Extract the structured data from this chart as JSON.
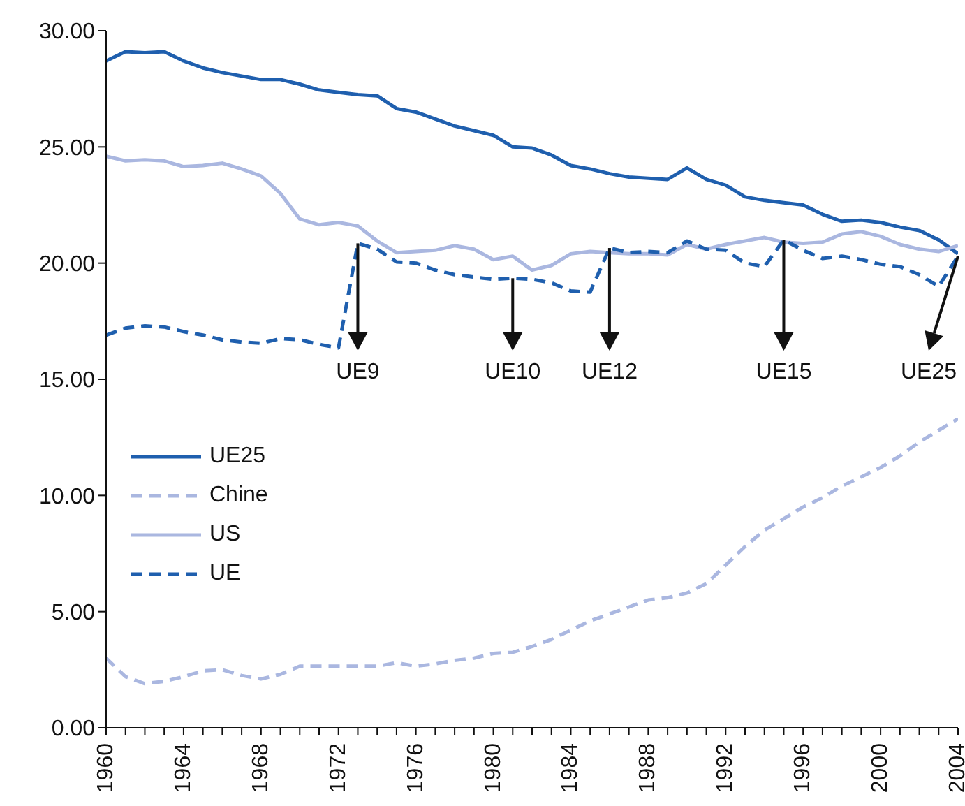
{
  "chart_data": {
    "type": "line",
    "x": [
      1960,
      1961,
      1962,
      1963,
      1964,
      1965,
      1966,
      1967,
      1968,
      1969,
      1970,
      1971,
      1972,
      1973,
      1974,
      1975,
      1976,
      1977,
      1978,
      1979,
      1980,
      1981,
      1982,
      1983,
      1984,
      1985,
      1986,
      1987,
      1988,
      1989,
      1990,
      1991,
      1992,
      1993,
      1994,
      1995,
      1996,
      1997,
      1998,
      1999,
      2000,
      2001,
      2002,
      2003,
      2004
    ],
    "xlim": [
      1960,
      2004
    ],
    "xticks": [
      1960,
      {
        "value": 1961,
        "label": null
      },
      {
        "value": 1962,
        "label": null
      },
      {
        "value": 1963,
        "label": null
      },
      1964,
      {
        "value": 1965,
        "label": null
      },
      {
        "value": 1966,
        "label": null
      },
      {
        "value": 1967,
        "label": null
      },
      1968,
      {
        "value": 1969,
        "label": null
      },
      {
        "value": 1970,
        "label": null
      },
      {
        "value": 1971,
        "label": null
      },
      1972,
      {
        "value": 1973,
        "label": null
      },
      {
        "value": 1974,
        "label": null
      },
      {
        "value": 1975,
        "label": null
      },
      1976,
      {
        "value": 1977,
        "label": null
      },
      {
        "value": 1978,
        "label": null
      },
      {
        "value": 1979,
        "label": null
      },
      1980,
      {
        "value": 1981,
        "label": null
      },
      {
        "value": 1982,
        "label": null
      },
      {
        "value": 1983,
        "label": null
      },
      1984,
      {
        "value": 1985,
        "label": null
      },
      {
        "value": 1986,
        "label": null
      },
      {
        "value": 1987,
        "label": null
      },
      1988,
      {
        "value": 1989,
        "label": null
      },
      {
        "value": 1990,
        "label": null
      },
      {
        "value": 1991,
        "label": null
      },
      1992,
      {
        "value": 1993,
        "label": null
      },
      {
        "value": 1994,
        "label": null
      },
      {
        "value": 1995,
        "label": null
      },
      1996,
      {
        "value": 1997,
        "label": null
      },
      {
        "value": 1998,
        "label": null
      },
      {
        "value": 1999,
        "label": null
      },
      2000,
      {
        "value": 2001,
        "label": null
      },
      {
        "value": 2002,
        "label": null
      },
      {
        "value": 2003,
        "label": null
      },
      2004
    ],
    "ylim": [
      0,
      30
    ],
    "yticks": [
      {
        "value": 0,
        "label": "0.00"
      },
      {
        "value": 5,
        "label": "5.00"
      },
      {
        "value": 10,
        "label": "10.00"
      },
      {
        "value": 15,
        "label": "15.00"
      },
      {
        "value": 20,
        "label": "20.00"
      },
      {
        "value": 25,
        "label": "25.00"
      },
      {
        "value": 30,
        "label": "30.00"
      }
    ],
    "grid": false,
    "legend": "left",
    "marker": "none",
    "series": [
      {
        "name": "UE25",
        "color": "#1f5fae",
        "line_style": "solid",
        "values": [
          28.7,
          29.1,
          29.05,
          29.1,
          28.7,
          28.4,
          28.2,
          28.05,
          27.9,
          27.9,
          27.7,
          27.45,
          27.35,
          27.25,
          27.2,
          26.65,
          26.5,
          26.2,
          25.9,
          25.7,
          25.5,
          25.0,
          24.95,
          24.65,
          24.2,
          24.05,
          23.85,
          23.7,
          23.65,
          23.6,
          24.1,
          23.6,
          23.35,
          22.85,
          22.7,
          22.6,
          22.5,
          22.1,
          21.8,
          21.85,
          21.75,
          21.55,
          21.4,
          21.0,
          20.4
        ]
      },
      {
        "name": "Chine",
        "color": "#aab7e0",
        "line_style": "dashed",
        "values": [
          3.0,
          2.2,
          1.9,
          2.0,
          2.2,
          2.45,
          2.5,
          2.25,
          2.1,
          2.3,
          2.65,
          2.65,
          2.65,
          2.65,
          2.65,
          2.8,
          2.65,
          2.75,
          2.9,
          3.0,
          3.2,
          3.25,
          3.5,
          3.8,
          4.2,
          4.6,
          4.9,
          5.2,
          5.5,
          5.6,
          5.8,
          6.2,
          7.0,
          7.8,
          8.5,
          9.0,
          9.5,
          9.9,
          10.4,
          10.8,
          11.2,
          11.7,
          12.3,
          12.8,
          13.3
        ]
      },
      {
        "name": "US",
        "color": "#aab7e0",
        "line_style": "solid",
        "values": [
          24.6,
          24.4,
          24.45,
          24.4,
          24.15,
          24.2,
          24.3,
          24.05,
          23.75,
          23.0,
          21.9,
          21.65,
          21.75,
          21.6,
          20.95,
          20.45,
          20.5,
          20.55,
          20.75,
          20.6,
          20.15,
          20.3,
          19.7,
          19.9,
          20.4,
          20.5,
          20.45,
          20.4,
          20.4,
          20.35,
          20.8,
          20.6,
          20.8,
          20.95,
          21.1,
          20.9,
          20.85,
          20.9,
          21.25,
          21.35,
          21.15,
          20.8,
          20.6,
          20.5,
          20.75
        ]
      },
      {
        "name": "UE",
        "color": "#1f5fae",
        "line_style": "dashed",
        "values": [
          16.9,
          17.2,
          17.3,
          17.25,
          17.05,
          16.9,
          16.7,
          16.6,
          16.55,
          16.75,
          16.7,
          16.5,
          16.35,
          20.85,
          20.6,
          20.05,
          20.0,
          19.7,
          19.5,
          19.4,
          19.3,
          19.35,
          19.3,
          19.15,
          18.8,
          18.75,
          20.65,
          20.45,
          20.5,
          20.45,
          20.95,
          20.6,
          20.55,
          20.0,
          19.85,
          21.0,
          20.55,
          20.2,
          20.3,
          20.15,
          19.95,
          19.85,
          19.5,
          19.0,
          20.3
        ]
      }
    ],
    "annotations": [
      {
        "text": "UE9",
        "x": 1973,
        "y": 20.85
      },
      {
        "text": "UE10",
        "x": 1981,
        "y": 19.35
      },
      {
        "text": "UE12",
        "x": 1986,
        "y": 20.65
      },
      {
        "text": "UE15",
        "x": 1995,
        "y": 21.0
      },
      {
        "text": "UE25",
        "x": 2004,
        "y": 20.3
      }
    ]
  }
}
